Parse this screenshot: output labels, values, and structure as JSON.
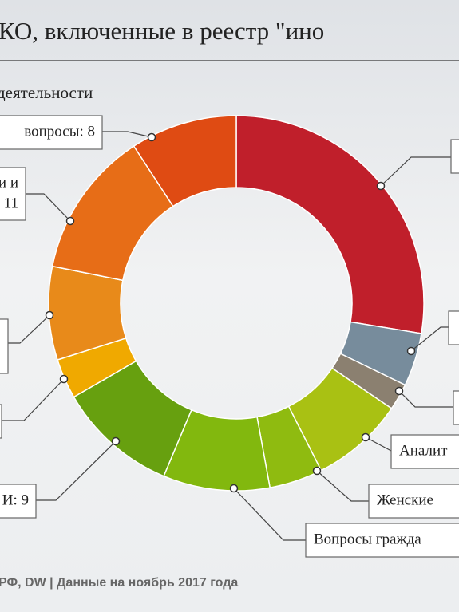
{
  "chart_data": {
    "type": "donut",
    "title": "КО, включенные в реестр \"ино",
    "subtitle": "деятельности",
    "source": "РФ, DW | Данные на ноябрь 2017 года",
    "categories": [
      null,
      null,
      null,
      [
        "Аналит"
      ],
      [
        "Женские"
      ],
      [
        "Вопросы гражда"
      ],
      [
        "И: 9"
      ],
      null,
      null,
      [
        "и и",
        "11"
      ],
      [
        "вопросы: 8"
      ]
    ],
    "values": [
      24,
      4,
      2,
      7,
      4,
      8,
      9,
      3,
      7,
      11,
      8
    ],
    "colors": [
      "#c01f2b",
      "#778c9c",
      "#8b8070",
      "#a9c113",
      "#8fbb10",
      "#82b80e",
      "#67a00f",
      "#f0a900",
      "#e88a1a",
      "#e76d17",
      "#df4b13"
    ]
  }
}
